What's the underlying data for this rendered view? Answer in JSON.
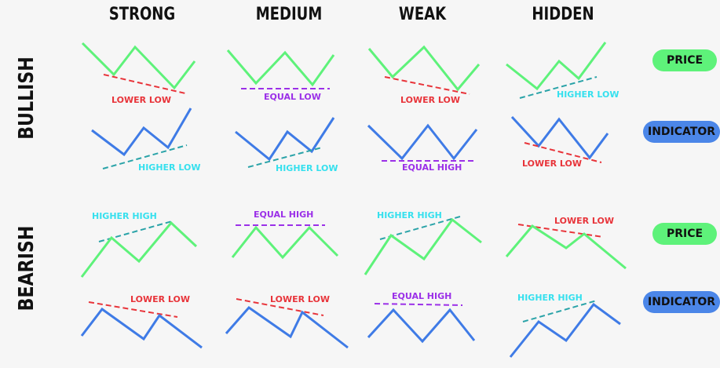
{
  "columns": [
    "STRONG",
    "MEDIUM",
    "WEAK",
    "HIDDEN"
  ],
  "rows": [
    "BULLISH",
    "BEARISH"
  ],
  "legend": {
    "price": "PRICE",
    "indicator": "INDICATOR"
  },
  "colors": {
    "price": "#5ef27a",
    "indicator": "#3f7be6",
    "red": "#e8343a",
    "purple": "#9b30e8",
    "cyan": "#36e0ee",
    "teal": "#2aa3a8"
  },
  "patterns": [
    {
      "row": "BULLISH",
      "type": "STRONG",
      "price_label": "LOWER LOW",
      "indicator_label": "HIGHER LOW"
    },
    {
      "row": "BULLISH",
      "type": "MEDIUM",
      "price_label": "EQUAL LOW",
      "indicator_label": "HIGHER LOW"
    },
    {
      "row": "BULLISH",
      "type": "WEAK",
      "price_label": "LOWER LOW",
      "indicator_label": "EQUAL HIGH"
    },
    {
      "row": "BULLISH",
      "type": "HIDDEN",
      "price_label": "HIGHER LOW",
      "indicator_label": "LOWER LOW"
    },
    {
      "row": "BEARISH",
      "type": "STRONG",
      "price_label": "HIGHER HIGH",
      "indicator_label": "LOWER LOW"
    },
    {
      "row": "BEARISH",
      "type": "MEDIUM",
      "price_label": "EQUAL HIGH",
      "indicator_label": "LOWER LOW"
    },
    {
      "row": "BEARISH",
      "type": "WEAK",
      "price_label": "HIGHER HIGH",
      "indicator_label": "EQUAL HIGH"
    },
    {
      "row": "BEARISH",
      "type": "HIDDEN",
      "price_label": "LOWER LOW",
      "indicator_label": "HIGHER HIGH"
    }
  ]
}
